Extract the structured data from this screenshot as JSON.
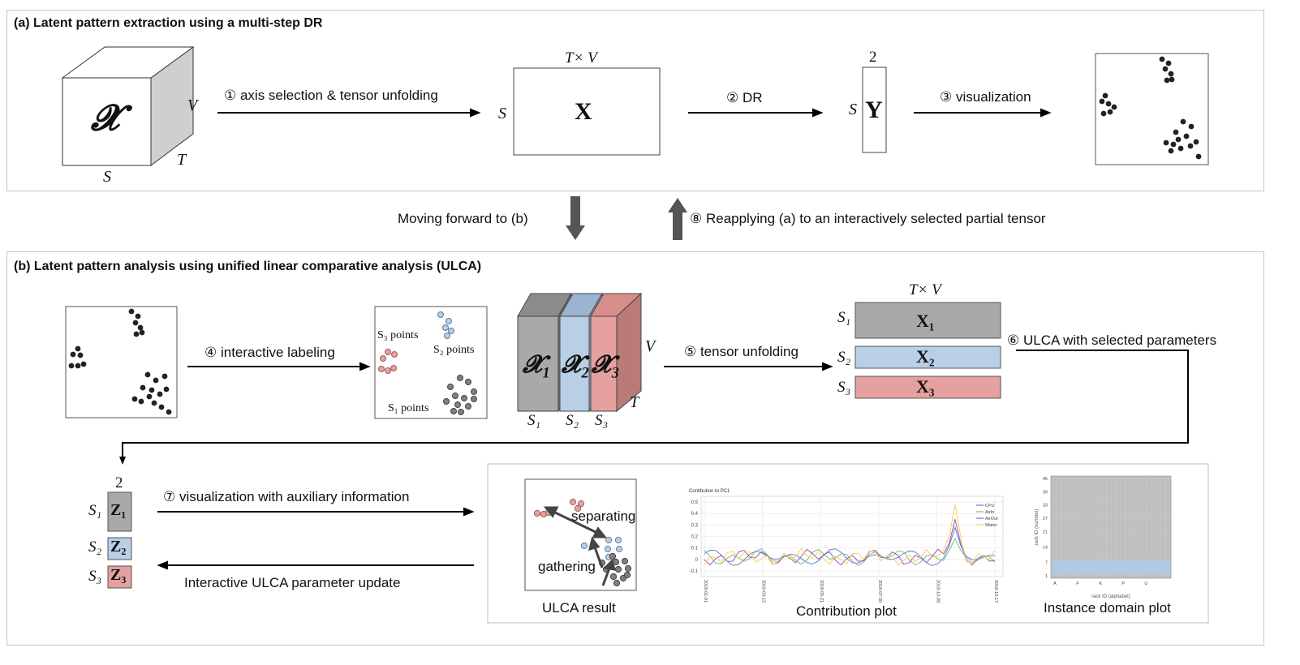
{
  "colors": {
    "gray": "#a9a9a9",
    "blue": "#b8cfe6",
    "red": "#e4a19f",
    "arrow_gray": "#555555",
    "panel_border": "#bdbdbd",
    "cpu": "#6b7bd6",
    "airin": "#7fbf7f",
    "airout": "#9b59b6",
    "water": "#f4d35e"
  },
  "panel_a": {
    "title": "(a) Latent pattern extraction using a multi-step DR",
    "tensor_symbol": "𝓧",
    "axis_s": "S",
    "axis_t": "T",
    "axis_v": "V",
    "step1": "① axis selection & tensor unfolding",
    "matrix_x": "X",
    "matrix_cols": "T× V",
    "matrix_rows": "S",
    "step2": "② DR",
    "y_label": "Y",
    "y_cols": "2",
    "y_rows": "S",
    "step3": "③ visualization"
  },
  "between": {
    "forward": "Moving forward to (b)",
    "reapply": "⑧ Reapplying (a) to an interactively selected partial tensor"
  },
  "panel_b": {
    "title": "(b) Latent pattern analysis using unified linear comparative analysis (ULCA)",
    "step4": "④ interactive labeling",
    "s3_points": "S₃ points",
    "s2_points": "S₂ points",
    "s1_points": "S₁ points",
    "x1": "𝓧₁",
    "x2": "𝓧₂",
    "x3": "𝓧₃",
    "s1": "S₁",
    "s2": "S₂",
    "s3": "S₃",
    "axis_v": "V",
    "axis_t": "T",
    "step5": "⑤ tensor unfolding",
    "matrix_cols": "T× V",
    "mx1": "X₁",
    "mx2": "X₂",
    "mx3": "X₃",
    "step6": "⑥ ULCA with selected parameters",
    "z_cols": "2",
    "z1": "Z₁",
    "z2": "Z₂",
    "z3": "Z₃",
    "step7": "⑦ visualization with auxiliary information",
    "update": "Interactive ULCA parameter update",
    "separating": "separating",
    "gathering": "gathering",
    "ulca_result": "ULCA result",
    "contribution_plot": "Contribution plot",
    "instance_domain_plot": "Instance domain plot"
  },
  "contribution": {
    "title": "Contibution to PC1",
    "yticks": [
      "0.5",
      "0.4",
      "0.3",
      "0.2",
      "0.1",
      "0",
      "-0.1"
    ],
    "xticks": [
      "2018-01-01",
      "2018-03-12",
      "2018-05-21",
      "2018-07-30",
      "2018-10-08",
      "2018-12-17"
    ],
    "legend": [
      "CPU",
      "AirIn",
      "AirOut",
      "Water"
    ]
  },
  "instance": {
    "yticks": [
      "45",
      "39",
      "33",
      "27",
      "21",
      "14",
      "7",
      "1"
    ],
    "xticks": [
      "A",
      "F",
      "K",
      "P",
      "U"
    ],
    "xlabel": "rack ID (alphabet)",
    "ylabel": "rack ID (number)"
  }
}
